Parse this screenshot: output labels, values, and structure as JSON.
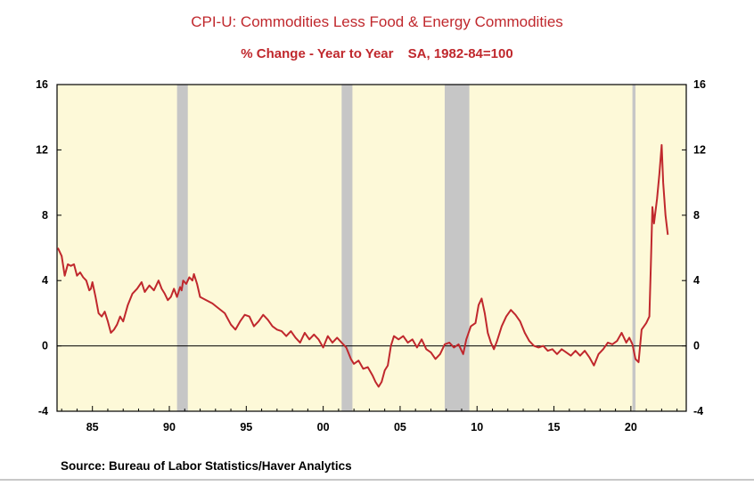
{
  "title": "CPI-U: Commodities Less Food & Energy Commodities",
  "subtitle_parts": [
    "% Change - Year to Year",
    "SA, 1982-84=100"
  ],
  "source": "Source:  Bureau of Labor Statistics/Haver Analytics",
  "colors": {
    "line": "#c0282d",
    "plot_background": "#fdf9d8",
    "recession": "#c6c6c6",
    "title": "#c0282d"
  },
  "chart_data": {
    "type": "line",
    "title": "CPI-U: Commodities Less Food & Energy Commodities",
    "subtitle": "% Change - Year to Year    SA, 1982-84=100",
    "xlabel": "",
    "ylabel": "",
    "xlim": [
      1982.7,
      2023.6
    ],
    "ylim": [
      -4,
      16
    ],
    "x_ticks": [
      1985,
      1990,
      1995,
      2000,
      2005,
      2010,
      2015,
      2020
    ],
    "x_tick_labels": [
      "85",
      "90",
      "95",
      "00",
      "05",
      "10",
      "15",
      "20"
    ],
    "y_ticks": [
      -4,
      0,
      4,
      8,
      12,
      16
    ],
    "y_tick_labels": [
      "-4",
      "0",
      "4",
      "8",
      "12",
      "16"
    ],
    "y_axis_both_sides": true,
    "zero_line": true,
    "grid": false,
    "recession_shading": [
      [
        1990.5,
        1991.2
      ],
      [
        2001.2,
        2001.9
      ],
      [
        2007.9,
        2009.5
      ],
      [
        2020.1,
        2020.3
      ]
    ],
    "series": [
      {
        "values": [
          [
            1982.75,
            6.0
          ],
          [
            1983.0,
            5.5
          ],
          [
            1983.2,
            4.3
          ],
          [
            1983.4,
            5.0
          ],
          [
            1983.6,
            4.9
          ],
          [
            1983.8,
            5.0
          ],
          [
            1984.0,
            4.3
          ],
          [
            1984.2,
            4.5
          ],
          [
            1984.4,
            4.2
          ],
          [
            1984.6,
            4.0
          ],
          [
            1984.8,
            3.4
          ],
          [
            1984.9,
            3.5
          ],
          [
            1985.0,
            3.9
          ],
          [
            1985.2,
            3.0
          ],
          [
            1985.4,
            2.0
          ],
          [
            1985.6,
            1.8
          ],
          [
            1985.8,
            2.1
          ],
          [
            1986.0,
            1.5
          ],
          [
            1986.2,
            0.8
          ],
          [
            1986.4,
            1.0
          ],
          [
            1986.6,
            1.3
          ],
          [
            1986.8,
            1.8
          ],
          [
            1987.0,
            1.5
          ],
          [
            1987.3,
            2.5
          ],
          [
            1987.6,
            3.2
          ],
          [
            1987.9,
            3.5
          ],
          [
            1988.2,
            3.9
          ],
          [
            1988.4,
            3.3
          ],
          [
            1988.7,
            3.7
          ],
          [
            1989.0,
            3.4
          ],
          [
            1989.3,
            4.0
          ],
          [
            1989.5,
            3.5
          ],
          [
            1989.7,
            3.2
          ],
          [
            1989.9,
            2.8
          ],
          [
            1990.1,
            3.0
          ],
          [
            1990.3,
            3.5
          ],
          [
            1990.5,
            3.0
          ],
          [
            1990.7,
            3.6
          ],
          [
            1990.8,
            3.4
          ],
          [
            1990.9,
            4.0
          ],
          [
            1991.1,
            3.8
          ],
          [
            1991.3,
            4.2
          ],
          [
            1991.5,
            4.0
          ],
          [
            1991.6,
            4.4
          ],
          [
            1991.8,
            3.8
          ],
          [
            1992.0,
            3.0
          ],
          [
            1992.4,
            2.8
          ],
          [
            1992.8,
            2.6
          ],
          [
            1993.2,
            2.3
          ],
          [
            1993.6,
            2.0
          ],
          [
            1994.0,
            1.3
          ],
          [
            1994.3,
            1.0
          ],
          [
            1994.6,
            1.5
          ],
          [
            1994.9,
            1.9
          ],
          [
            1995.2,
            1.8
          ],
          [
            1995.5,
            1.2
          ],
          [
            1995.8,
            1.5
          ],
          [
            1996.1,
            1.9
          ],
          [
            1996.4,
            1.6
          ],
          [
            1996.7,
            1.2
          ],
          [
            1997.0,
            1.0
          ],
          [
            1997.3,
            0.9
          ],
          [
            1997.6,
            0.6
          ],
          [
            1997.9,
            0.9
          ],
          [
            1998.2,
            0.5
          ],
          [
            1998.5,
            0.2
          ],
          [
            1998.8,
            0.8
          ],
          [
            1999.1,
            0.4
          ],
          [
            1999.4,
            0.7
          ],
          [
            1999.7,
            0.4
          ],
          [
            2000.0,
            -0.1
          ],
          [
            2000.3,
            0.6
          ],
          [
            2000.6,
            0.2
          ],
          [
            2000.9,
            0.5
          ],
          [
            2001.2,
            0.2
          ],
          [
            2001.5,
            -0.1
          ],
          [
            2001.8,
            -0.8
          ],
          [
            2002.0,
            -1.1
          ],
          [
            2002.3,
            -0.9
          ],
          [
            2002.6,
            -1.4
          ],
          [
            2002.9,
            -1.3
          ],
          [
            2003.2,
            -1.8
          ],
          [
            2003.4,
            -2.2
          ],
          [
            2003.6,
            -2.5
          ],
          [
            2003.8,
            -2.2
          ],
          [
            2004.0,
            -1.5
          ],
          [
            2004.2,
            -1.2
          ],
          [
            2004.4,
            0.0
          ],
          [
            2004.6,
            0.6
          ],
          [
            2004.9,
            0.4
          ],
          [
            2005.2,
            0.6
          ],
          [
            2005.5,
            0.2
          ],
          [
            2005.8,
            0.4
          ],
          [
            2006.1,
            -0.1
          ],
          [
            2006.4,
            0.4
          ],
          [
            2006.7,
            -0.2
          ],
          [
            2007.0,
            -0.4
          ],
          [
            2007.3,
            -0.8
          ],
          [
            2007.6,
            -0.5
          ],
          [
            2007.9,
            0.1
          ],
          [
            2008.2,
            0.2
          ],
          [
            2008.5,
            -0.1
          ],
          [
            2008.8,
            0.1
          ],
          [
            2009.1,
            -0.5
          ],
          [
            2009.3,
            0.4
          ],
          [
            2009.6,
            1.2
          ],
          [
            2009.9,
            1.4
          ],
          [
            2010.1,
            2.5
          ],
          [
            2010.3,
            2.9
          ],
          [
            2010.5,
            2.0
          ],
          [
            2010.7,
            0.8
          ],
          [
            2010.9,
            0.2
          ],
          [
            2011.1,
            -0.2
          ],
          [
            2011.3,
            0.3
          ],
          [
            2011.6,
            1.2
          ],
          [
            2011.9,
            1.8
          ],
          [
            2012.2,
            2.2
          ],
          [
            2012.5,
            1.9
          ],
          [
            2012.8,
            1.5
          ],
          [
            2013.1,
            0.8
          ],
          [
            2013.4,
            0.3
          ],
          [
            2013.7,
            0.0
          ],
          [
            2014.0,
            -0.1
          ],
          [
            2014.3,
            0.0
          ],
          [
            2014.6,
            -0.3
          ],
          [
            2014.9,
            -0.2
          ],
          [
            2015.2,
            -0.5
          ],
          [
            2015.5,
            -0.2
          ],
          [
            2015.8,
            -0.4
          ],
          [
            2016.1,
            -0.6
          ],
          [
            2016.4,
            -0.3
          ],
          [
            2016.7,
            -0.6
          ],
          [
            2017.0,
            -0.3
          ],
          [
            2017.3,
            -0.7
          ],
          [
            2017.6,
            -1.2
          ],
          [
            2017.9,
            -0.5
          ],
          [
            2018.2,
            -0.2
          ],
          [
            2018.5,
            0.2
          ],
          [
            2018.8,
            0.1
          ],
          [
            2019.1,
            0.3
          ],
          [
            2019.4,
            0.8
          ],
          [
            2019.7,
            0.2
          ],
          [
            2019.9,
            0.5
          ],
          [
            2020.1,
            0.1
          ],
          [
            2020.3,
            -0.8
          ],
          [
            2020.5,
            -1.0
          ],
          [
            2020.7,
            1.0
          ],
          [
            2021.0,
            1.4
          ],
          [
            2021.2,
            1.8
          ],
          [
            2021.3,
            5.0
          ],
          [
            2021.4,
            8.5
          ],
          [
            2021.5,
            7.5
          ],
          [
            2021.7,
            9.0
          ],
          [
            2021.85,
            10.5
          ],
          [
            2022.0,
            12.3
          ],
          [
            2022.1,
            10.0
          ],
          [
            2022.25,
            8.0
          ],
          [
            2022.4,
            6.8
          ]
        ]
      }
    ]
  }
}
